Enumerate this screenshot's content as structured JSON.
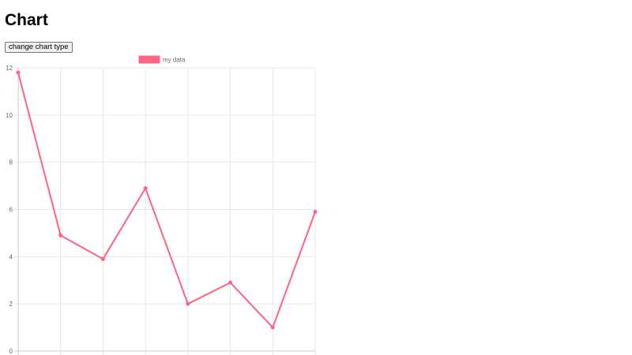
{
  "page": {
    "title": "Chart",
    "button_label": "change chart type"
  },
  "chart_data": {
    "type": "line",
    "title": "",
    "xlabel": "",
    "ylabel": "",
    "categories": [
      "",
      "",
      "",
      "",
      "",
      "",
      "",
      ""
    ],
    "series": [
      {
        "name": "my data",
        "values": [
          11.8,
          4.9,
          3.9,
          6.9,
          2.0,
          2.9,
          1.0,
          5.9
        ],
        "color": "#ff6384"
      }
    ],
    "ylim": [
      0,
      12
    ],
    "yticks": [
      "0",
      "2",
      "4",
      "6",
      "8",
      "10",
      "12"
    ],
    "grid": true,
    "legend": "top"
  }
}
